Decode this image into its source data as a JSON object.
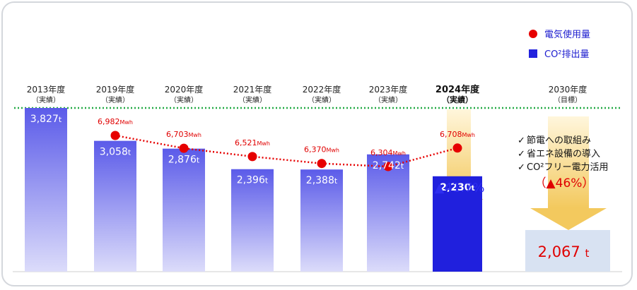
{
  "chart_data": {
    "type": "bar",
    "categories": [
      {
        "year": "2013年度",
        "note": "（実績）"
      },
      {
        "year": "2019年度",
        "note": "（実績）"
      },
      {
        "year": "2020年度",
        "note": "（実績）"
      },
      {
        "year": "2021年度",
        "note": "（実績）"
      },
      {
        "year": "2022年度",
        "note": "（実績）"
      },
      {
        "year": "2023年度",
        "note": "（実績）"
      },
      {
        "year": "2024年度",
        "note": "（実績）"
      },
      {
        "year": "2030年度",
        "note": "（目標）"
      }
    ],
    "co2": {
      "name": "CO²排出量",
      "values": [
        3827,
        3058,
        2876,
        2396,
        2388,
        2742,
        2230,
        2067
      ],
      "labels": [
        "3,827",
        "3,058",
        "2,876",
        "2,396",
        "2,388",
        "2,742",
        "2,230",
        "2,067"
      ],
      "unit": "t",
      "color": "#2222dd"
    },
    "electricity": {
      "name": "電気使用量",
      "values": [
        null,
        6982,
        6703,
        6521,
        6370,
        6304,
        6708,
        null
      ],
      "labels": [
        "",
        "6,982",
        "6,703",
        "6,521",
        "6,370",
        "6,304",
        "6,708",
        ""
      ],
      "unit": "Mwh",
      "color": "#e60000"
    },
    "reference_line": {
      "value": 3827,
      "color": "#22aa44",
      "style": "dotted"
    },
    "legend_position": "top-right",
    "ylim": [
      0,
      3827
    ]
  },
  "annotations": {
    "reduction_2024": "▲41.7%",
    "measures": [
      "節電への取組み",
      "省エネ設備の導入",
      "CO²フリー電力活用"
    ],
    "check_mark": "✓",
    "reduction_2030": "（▲46%）"
  },
  "colors": {
    "bar_top": "#4a4ae8",
    "bar_bottom": "#d6d6f8",
    "bar_highlight": "#2020dd",
    "bar_target": "#d8e2f2",
    "arrow": "#f5d27a"
  }
}
